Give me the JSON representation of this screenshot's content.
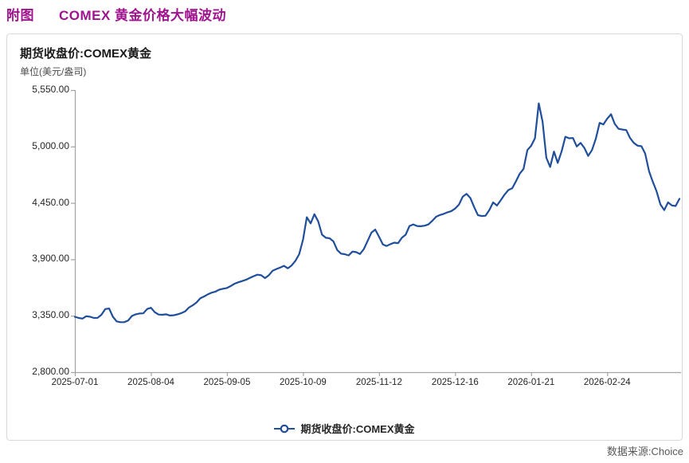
{
  "page": {
    "title_prefix": "附图",
    "title": "COMEX 黄金价格大幅波动",
    "title_color": "#a0138e",
    "source": "数据来源:Choice"
  },
  "chart": {
    "header_title": "期货收盘价:COMEX黄金",
    "unit_label": "单位(美元/盎司)",
    "legend_label": "期货收盘价:COMEX黄金",
    "legend_marker": "hollow-circle-on-line",
    "line_color": "#1f4e9b",
    "axis_color": "#a3a3a3",
    "panel_border_color": "#d9d9d9"
  },
  "chart_data": {
    "type": "line",
    "title": "期货收盘价:COMEX黄金",
    "ylabel": "单位(美元/盎司)",
    "ylim": [
      2800,
      5550
    ],
    "y_ticks": [
      5550,
      5000,
      4450,
      3900,
      3350,
      2800
    ],
    "y_tick_labels": [
      "5,550.00",
      "5,000.00",
      "4,450.00",
      "3,900.00",
      "3,350.00",
      "2,800.00"
    ],
    "x_tick_labels": [
      "2025-07-01",
      "2025-08-04",
      "2025-09-05",
      "2025-10-09",
      "2025-11-12",
      "2025-12-16",
      "2026-01-21",
      "2026-02-24"
    ],
    "x_tick_indices": [
      0,
      20,
      40,
      60,
      80,
      100,
      120,
      140
    ],
    "grid": false,
    "legend_position": "bottom",
    "series": [
      {
        "name": "期货收盘价:COMEX黄金",
        "values": [
          3340,
          3328,
          3322,
          3345,
          3340,
          3328,
          3330,
          3360,
          3415,
          3421,
          3340,
          3295,
          3287,
          3287,
          3303,
          3348,
          3364,
          3372,
          3373,
          3415,
          3428,
          3385,
          3362,
          3359,
          3364,
          3352,
          3355,
          3363,
          3376,
          3392,
          3430,
          3452,
          3480,
          3520,
          3538,
          3559,
          3575,
          3585,
          3605,
          3613,
          3620,
          3640,
          3662,
          3676,
          3688,
          3700,
          3718,
          3735,
          3750,
          3745,
          3717,
          3745,
          3788,
          3805,
          3820,
          3836,
          3812,
          3840,
          3885,
          3950,
          4090,
          4310,
          4250,
          4340,
          4270,
          4140,
          4110,
          4105,
          4075,
          3990,
          3955,
          3950,
          3938,
          3975,
          3970,
          3952,
          4000,
          4080,
          4160,
          4190,
          4120,
          4045,
          4030,
          4048,
          4062,
          4058,
          4110,
          4140,
          4225,
          4240,
          4225,
          4222,
          4228,
          4240,
          4275,
          4315,
          4332,
          4343,
          4358,
          4370,
          4395,
          4432,
          4510,
          4538,
          4498,
          4410,
          4330,
          4322,
          4325,
          4380,
          4455,
          4424,
          4475,
          4530,
          4575,
          4592,
          4660,
          4735,
          4782,
          4965,
          5006,
          5080,
          5420,
          5240,
          4890,
          4800,
          4950,
          4840,
          4950,
          5095,
          5080,
          5082,
          5000,
          5035,
          4985,
          4908,
          4965,
          5075,
          5230,
          5215,
          5270,
          5315,
          5220,
          5172,
          5165,
          5160,
          5084,
          5035,
          5008,
          5002,
          4930,
          4760,
          4655,
          4560,
          4435,
          4380,
          4455,
          4425,
          4420,
          4490
        ]
      }
    ]
  }
}
